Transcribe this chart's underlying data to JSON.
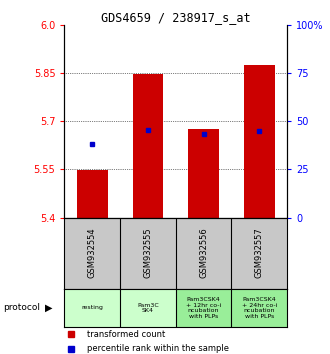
{
  "title": "GDS4659 / 238917_s_at",
  "samples": [
    "GSM932554",
    "GSM932555",
    "GSM932556",
    "GSM932557"
  ],
  "bar_values": [
    5.548,
    5.848,
    5.675,
    5.875
  ],
  "bar_base": 5.4,
  "dot_values": [
    5.63,
    5.672,
    5.66,
    5.67
  ],
  "ylim_left": [
    5.4,
    6.0
  ],
  "yticks_left": [
    5.4,
    5.55,
    5.7,
    5.85,
    6.0
  ],
  "ylim_right": [
    0,
    100
  ],
  "yticks_right": [
    0,
    25,
    50,
    75,
    100
  ],
  "ytick_labels_right": [
    "0",
    "25",
    "50",
    "75",
    "100%"
  ],
  "bar_color": "#cc0000",
  "dot_color": "#0000cc",
  "bg_color": "#ffffff",
  "protocol_labels": [
    "resting",
    "Pam3C\nSK4",
    "Pam3CSK4\n+ 12hr co-i\nncubation\nwith PLPs",
    "Pam3CSK4\n+ 24hr co-i\nncubation\nwith PLPs"
  ],
  "protocol_colors": [
    "#ccffcc",
    "#ccffcc",
    "#99ee99",
    "#99ee99"
  ],
  "sample_bg_color": "#c8c8c8",
  "legend_red_label": "transformed count",
  "legend_blue_label": "percentile rank within the sample",
  "bar_width": 0.55
}
